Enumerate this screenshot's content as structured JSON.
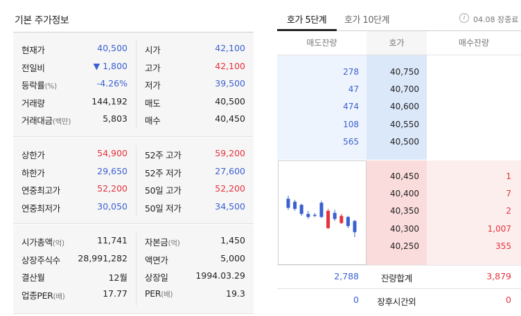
{
  "left": {
    "title": "기본 주가정보",
    "groups": [
      {
        "rows": [
          {
            "k1": "현재가",
            "k1_unit": "",
            "v1": "40,500",
            "v1_color": "blue",
            "k2": "시가",
            "k2_unit": "",
            "v2": "42,100",
            "v2_color": "blue"
          },
          {
            "k1": "전일비",
            "k1_unit": "",
            "v1": "▼ 1,800",
            "v1_color": "blue",
            "k2": "고가",
            "k2_unit": "",
            "v2": "42,100",
            "v2_color": "red"
          },
          {
            "k1": "등락률",
            "k1_unit": "(%)",
            "v1": "-4.26%",
            "v1_color": "blue",
            "k2": "저가",
            "k2_unit": "",
            "v2": "39,500",
            "v2_color": "blue"
          },
          {
            "k1": "거래량",
            "k1_unit": "",
            "v1": "144,192",
            "v1_color": "dark",
            "k2": "매도",
            "k2_unit": "",
            "v2": "40,500",
            "v2_color": "dark"
          },
          {
            "k1": "거래대금",
            "k1_unit": "(백만)",
            "v1": "5,803",
            "v1_color": "dark",
            "k2": "매수",
            "k2_unit": "",
            "v2": "40,450",
            "v2_color": "dark"
          }
        ]
      },
      {
        "rows": [
          {
            "k1": "상한가",
            "k1_unit": "",
            "v1": "54,900",
            "v1_color": "red",
            "k2": "52주 고가",
            "k2_unit": "",
            "v2": "59,200",
            "v2_color": "red"
          },
          {
            "k1": "하한가",
            "k1_unit": "",
            "v1": "29,650",
            "v1_color": "blue",
            "k2": "52주 저가",
            "k2_unit": "",
            "v2": "27,600",
            "v2_color": "blue"
          },
          {
            "k1": "연중최고가",
            "k1_unit": "",
            "v1": "52,200",
            "v1_color": "red",
            "k2": "50일 고가",
            "k2_unit": "",
            "v2": "52,200",
            "v2_color": "red"
          },
          {
            "k1": "연중최저가",
            "k1_unit": "",
            "v1": "30,050",
            "v1_color": "blue",
            "k2": "50일 저가",
            "k2_unit": "",
            "v2": "34,500",
            "v2_color": "blue"
          }
        ]
      },
      {
        "rows": [
          {
            "k1": "시가총액",
            "k1_unit": "(억)",
            "v1": "11,741",
            "v1_color": "dark",
            "k2": "자본금",
            "k2_unit": "(억)",
            "v2": "1,450",
            "v2_color": "dark"
          },
          {
            "k1": "상장주식수",
            "k1_unit": "",
            "v1": "28,991,282",
            "v1_color": "dark",
            "k2": "액면가",
            "k2_unit": "",
            "v2": "5,000",
            "v2_color": "dark"
          },
          {
            "k1": "결산월",
            "k1_unit": "",
            "v1": "12월",
            "v1_color": "dark",
            "k2": "상장일",
            "k2_unit": "",
            "v2": "1994.03.29",
            "v2_color": "dark"
          },
          {
            "k1": "업종PER",
            "k1_unit": "(배)",
            "v1": "17.77",
            "v1_color": "dark",
            "k2": "PER",
            "k2_unit": "(배)",
            "v2": "19.3",
            "v2_color": "dark"
          }
        ]
      }
    ]
  },
  "right": {
    "tabs": [
      {
        "label": "호가 5단계",
        "active": true
      },
      {
        "label": "호가 10단계",
        "active": false
      }
    ],
    "info_icon": "info-icon",
    "market_time": "04.08 장종료",
    "headers": {
      "ask_qty": "매도잔량",
      "price": "호가",
      "bid_qty": "매수잔량"
    },
    "asks": [
      {
        "qty": "278",
        "price": "40,750"
      },
      {
        "qty": "47",
        "price": "40,700"
      },
      {
        "qty": "474",
        "price": "40,600"
      },
      {
        "qty": "108",
        "price": "40,550"
      },
      {
        "qty": "565",
        "price": "40,500"
      }
    ],
    "bids": [
      {
        "price": "40,450",
        "qty": "1"
      },
      {
        "price": "40,400",
        "qty": "7"
      },
      {
        "price": "40,350",
        "qty": "2"
      },
      {
        "price": "40,300",
        "qty": "1,007"
      },
      {
        "price": "40,250",
        "qty": "355"
      }
    ],
    "total": {
      "ask": "2,788",
      "label": "잔량합계",
      "bid": "3,879"
    },
    "after_hours": {
      "ask": "0",
      "label": "장후시간외",
      "bid": "0"
    }
  },
  "colors": {
    "up": "#e5323c",
    "down": "#3a60d0",
    "ask_bg": "#dbe8fa",
    "bid_bg": "#fbdcdc"
  },
  "mini_chart": {
    "candles": [
      {
        "open": 42.0,
        "close": 41.1,
        "high": 42.3,
        "low": 40.9
      },
      {
        "open": 41.7,
        "close": 41.0,
        "high": 41.9,
        "low": 40.8
      },
      {
        "open": 41.4,
        "close": 40.5,
        "high": 41.5,
        "low": 40.3
      },
      {
        "open": 40.5,
        "close": 40.2,
        "high": 40.8,
        "low": 40.0
      },
      {
        "open": 40.4,
        "close": 40.3,
        "high": 40.6,
        "low": 40.2
      },
      {
        "open": 41.6,
        "close": 40.2,
        "high": 41.8,
        "low": 40.1
      },
      {
        "open": 39.1,
        "close": 40.8,
        "high": 41.0,
        "low": 39.0
      },
      {
        "open": 40.6,
        "close": 40.0,
        "high": 40.9,
        "low": 39.8
      },
      {
        "open": 39.6,
        "close": 40.3,
        "high": 40.5,
        "low": 39.5
      },
      {
        "open": 40.2,
        "close": 39.3,
        "high": 40.3,
        "low": 39.1
      },
      {
        "open": 39.8,
        "close": 38.7,
        "high": 39.9,
        "low": 38.2
      }
    ]
  }
}
